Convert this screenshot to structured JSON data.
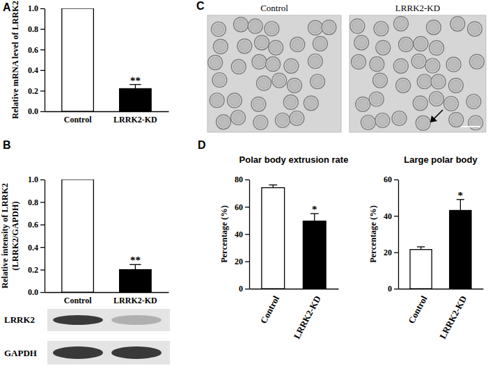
{
  "chart_data": [
    {
      "type": "bar",
      "y_label": [
        "Relative mRNA level of LRRK2"
      ],
      "categories": [
        "Control",
        "LRRK2-KD"
      ],
      "values": [
        1.0,
        0.22
      ],
      "errors": [
        null,
        0.04
      ],
      "significance": [
        null,
        "**"
      ],
      "colors": [
        "#ffffff",
        "#000000"
      ],
      "ylim": [
        0,
        1.0
      ],
      "yticks": [
        {
          "value": 0,
          "label": "0.0"
        },
        0.2,
        0.4,
        0.6,
        0.8,
        {
          "value": 1.0,
          "label": "1.0"
        }
      ]
    },
    {
      "type": "bar",
      "y_label": [
        "Relative intensity of LRRK2",
        "(LRRK2/GAPDH)"
      ],
      "categories": [
        "Control",
        "LRRK2-KD"
      ],
      "values": [
        1.0,
        0.2
      ],
      "errors": [
        null,
        0.045
      ],
      "significance": [
        null,
        "**"
      ],
      "colors": [
        "#ffffff",
        "#000000"
      ],
      "ylim": [
        0,
        1.0
      ],
      "yticks": [
        {
          "value": 0,
          "label": "0.0"
        },
        0.2,
        0.4,
        0.6,
        0.8,
        {
          "value": 1.0,
          "label": "1.0"
        }
      ]
    },
    {
      "type": "bar",
      "title": "Polar body extrusion rate",
      "y_label": [
        "Percentage (%)"
      ],
      "categories": [
        "Control",
        "LRRK2-KD"
      ],
      "values": [
        74,
        49.5
      ],
      "errors": [
        2,
        5.5
      ],
      "significance": [
        null,
        "*"
      ],
      "colors": [
        "#ffffff",
        "#000000"
      ],
      "ylim": [
        0,
        80
      ],
      "yticks": [
        0,
        20,
        40,
        60,
        80
      ]
    },
    {
      "type": "bar",
      "title": "Large polar body",
      "y_label": [
        "Percentage (%)"
      ],
      "categories": [
        "Control",
        "LRRK2-KD"
      ],
      "values": [
        21.5,
        43
      ],
      "errors": [
        1.5,
        6
      ],
      "significance": [
        null,
        "*"
      ],
      "colors": [
        "#ffffff",
        "#000000"
      ],
      "ylim": [
        0,
        60
      ],
      "yticks": [
        0,
        20,
        40,
        60
      ]
    }
  ],
  "figure": {
    "panel_labels": [
      "A",
      "B",
      "C",
      "D"
    ],
    "blot_labels": [
      "LRRK2",
      "GAPDH"
    ],
    "image_titles": [
      "Control",
      "LRRK2-KD"
    ]
  }
}
